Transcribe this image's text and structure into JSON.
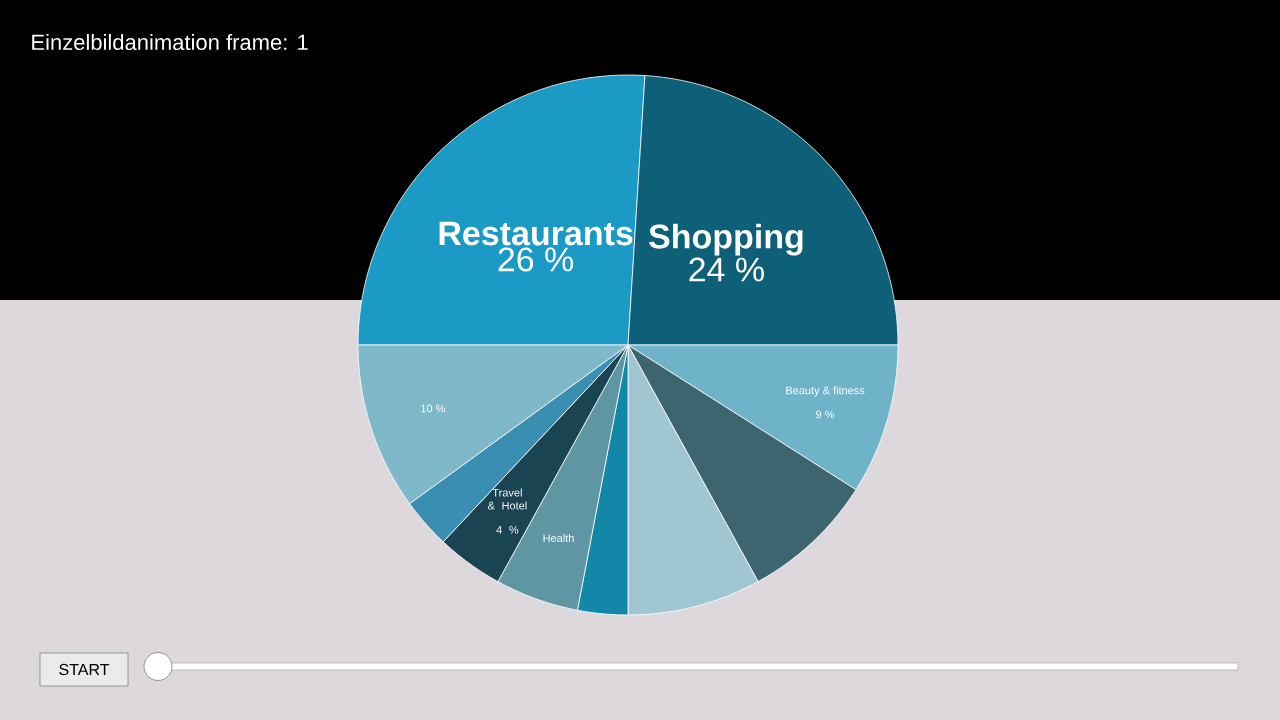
{
  "chart_data": {
    "type": "pie",
    "title": "Einzelbildanimation frame:  1",
    "categories": [
      "Restaurants",
      "Shopping",
      "Beauty & fitness",
      null,
      null,
      null,
      "Health",
      "Travel & Hotel",
      null,
      null
    ],
    "values": [
      26,
      24,
      9,
      8,
      8,
      3,
      5,
      4,
      3,
      10
    ],
    "value_labels": [
      "26 %",
      "24 %",
      "9 %",
      null,
      null,
      null,
      null,
      "4 %",
      null,
      "10 %"
    ],
    "colors": [
      "#1a9ac4",
      "#0e5f78",
      "#6fb3c8",
      "#3d6570",
      "#a0c6d2",
      "#1387a8",
      "#5f96a3",
      "#1a4452",
      "#3a8eb2",
      "#7fb8c8"
    ],
    "annotations": [
      "START"
    ]
  }
}
